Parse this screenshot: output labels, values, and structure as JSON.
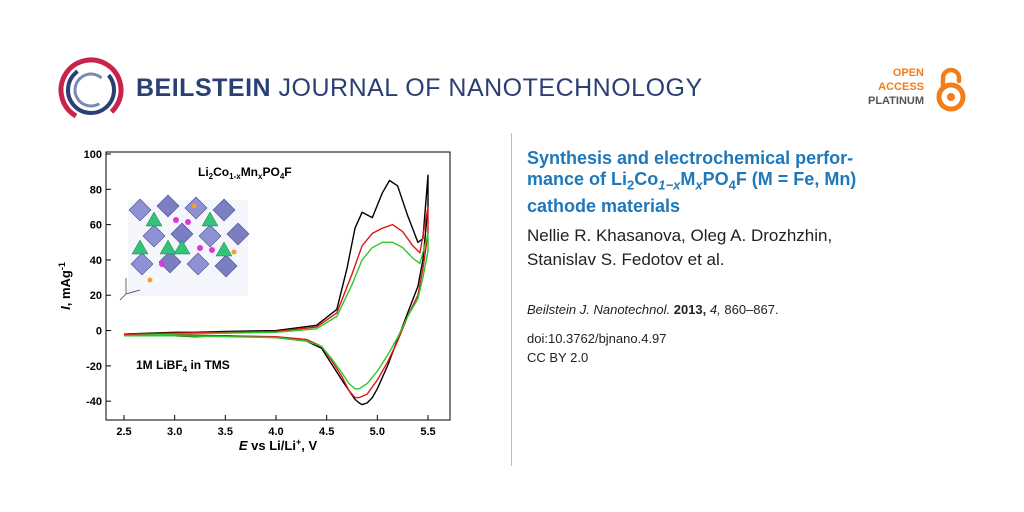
{
  "header": {
    "journal_strong": "BEILSTEIN",
    "journal_rest": " JOURNAL OF NANOTECHNOLOGY",
    "badge": {
      "line1": "OPEN",
      "line2": "ACCESS",
      "line3": "PLATINUM",
      "icon": "open-lock-icon"
    },
    "logo_icon": "beilstein-ring-logo",
    "colors": {
      "brand": "#2a3f73",
      "accent": "#c8234a",
      "oa": "#f27d1a",
      "title": "#1f78b9"
    }
  },
  "article": {
    "title_parts": {
      "p1": "Synthesis and electrochemical perfor-",
      "p2": "mance of Li",
      "sub1": "2",
      "p3": "Co",
      "sub2": "1−x",
      "p4": "M",
      "sub3": "x",
      "p5": "PO",
      "sub4": "4",
      "p6": "F (M = Fe, Mn)",
      "p7": "cathode materials"
    },
    "authors_line1": "Nellie R. Khasanova, Oleg A. Drozhzhin,",
    "authors_line2": "Stanislav S. Fedotov et al.",
    "citation": {
      "journal": "Beilstein J. Nanotechnol.",
      "year": "2013,",
      "volume": "4,",
      "pages": "860–867."
    },
    "doi": "doi:10.3762/bjnano.4.97",
    "license": "CC BY 2.0"
  },
  "figure": {
    "formula_parts": {
      "a": "Li",
      "b": "2",
      "c": "Co",
      "d": "1-x",
      "e": "Mn",
      "f": "x",
      "g": "PO",
      "h": "4",
      "i": "F"
    },
    "electrolyte_parts": {
      "a": "1M  LiBF",
      "b": "4",
      "c": " in TMS"
    },
    "xlabel_parts": {
      "a": "E",
      "b": " vs  Li/Li",
      "c": "+",
      "d": ", V"
    },
    "ylabel_parts": {
      "a": "I",
      "b": ", mAg",
      "c": "-1"
    },
    "chart_data": {
      "type": "line",
      "x_ticks": [
        "2.5",
        "3.0",
        "3.5",
        "4.0",
        "4.5",
        "5.0",
        "5.5"
      ],
      "y_ticks": [
        "100",
        "80",
        "60",
        "40",
        "20",
        "0",
        "-20",
        "-40"
      ],
      "xlim": [
        2.5,
        5.5
      ],
      "ylim": [
        -45,
        100
      ],
      "series": [
        {
          "color": "#000000",
          "x": [
            2.5,
            3.0,
            3.2,
            3.5,
            4.0,
            4.4,
            4.6,
            4.7,
            4.78,
            4.85,
            4.95,
            5.05,
            5.12,
            5.2,
            5.3,
            5.4,
            5.45,
            5.5,
            5.5,
            5.45,
            5.4,
            5.3,
            5.2,
            5.1,
            5.0,
            4.95,
            4.9,
            4.85,
            4.82,
            4.78,
            4.72,
            4.65,
            4.55,
            4.45,
            4.3,
            4.0,
            3.5,
            3.2,
            3.0,
            2.5
          ],
          "y": [
            -2,
            -1,
            -1,
            -0.5,
            0,
            3,
            12,
            35,
            58,
            67,
            64,
            78,
            85,
            82,
            65,
            50,
            52,
            88,
            70,
            40,
            25,
            10,
            -5,
            -20,
            -33,
            -38,
            -41,
            -42,
            -41,
            -39,
            -34,
            -28,
            -19,
            -10,
            -6,
            -4,
            -3,
            -3.5,
            -3,
            -3
          ]
        },
        {
          "color": "#e01515",
          "x": [
            2.5,
            3.0,
            3.5,
            4.0,
            4.4,
            4.6,
            4.75,
            4.85,
            4.95,
            5.05,
            5.15,
            5.25,
            5.35,
            5.42,
            5.5,
            5.5,
            5.45,
            5.4,
            5.3,
            5.2,
            5.1,
            5.0,
            4.9,
            4.82,
            4.78,
            4.72,
            4.65,
            4.55,
            4.45,
            4.3,
            4.0,
            3.5,
            3.0,
            2.5
          ],
          "y": [
            -2,
            -1.5,
            -1,
            -0.5,
            2,
            10,
            32,
            48,
            55,
            58,
            60,
            56,
            48,
            44,
            70,
            55,
            35,
            20,
            8,
            -6,
            -18,
            -28,
            -36,
            -38,
            -38,
            -34,
            -26,
            -17,
            -9,
            -5,
            -3.5,
            -3,
            -2.5,
            -2.5
          ]
        },
        {
          "color": "#2ec82e",
          "x": [
            2.5,
            3.0,
            3.5,
            4.0,
            4.4,
            4.6,
            4.75,
            4.85,
            4.95,
            5.05,
            5.15,
            5.25,
            5.35,
            5.42,
            5.5,
            5.5,
            5.45,
            5.4,
            5.3,
            5.2,
            5.1,
            5.0,
            4.9,
            4.82,
            4.78,
            4.72,
            4.65,
            4.55,
            4.45,
            4.3,
            4.0,
            3.5,
            3.0,
            2.5
          ],
          "y": [
            -3,
            -2,
            -1.5,
            -1,
            1,
            8,
            26,
            40,
            47,
            50,
            50,
            47,
            41,
            38,
            55,
            45,
            30,
            18,
            8,
            -4,
            -14,
            -23,
            -30,
            -33,
            -33,
            -30,
            -24,
            -16,
            -9,
            -6,
            -4,
            -3.5,
            -3,
            -3
          ]
        }
      ]
    }
  }
}
